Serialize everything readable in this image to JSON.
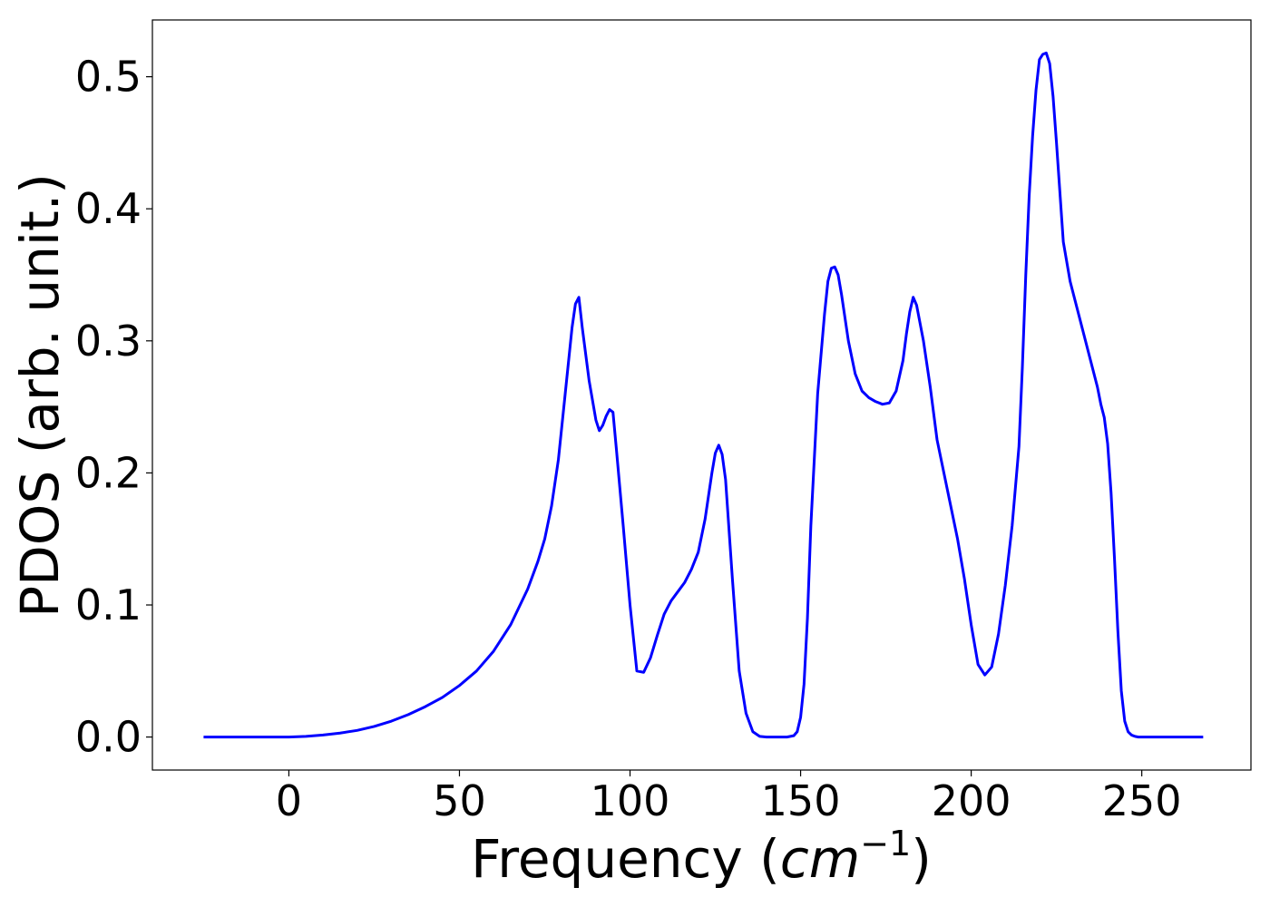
{
  "chart_data": {
    "type": "line",
    "xlabel": "Frequency (",
    "xlabel_math": "cm",
    "xlabel_exponent": "−1",
    "xlabel_close": ")",
    "ylabel": "PDOS (arb. unit.)",
    "xlim": [
      -40,
      282
    ],
    "ylim": [
      -0.025,
      0.543
    ],
    "xticks": [
      0,
      50,
      100,
      150,
      200,
      250
    ],
    "xtick_labels": [
      "0",
      "50",
      "100",
      "150",
      "200",
      "250"
    ],
    "yticks": [
      0.0,
      0.1,
      0.2,
      0.3,
      0.4,
      0.5
    ],
    "ytick_labels": [
      "0.0",
      "0.1",
      "0.2",
      "0.3",
      "0.4",
      "0.5"
    ],
    "grid": false,
    "series": [
      {
        "color": "#0000ff",
        "x": [
          -25,
          -10,
          0,
          5,
          10,
          15,
          20,
          25,
          30,
          35,
          40,
          45,
          50,
          55,
          60,
          65,
          70,
          73,
          75,
          77,
          79,
          81,
          83,
          84,
          85,
          86,
          88,
          90,
          91,
          92,
          93,
          94,
          95,
          96,
          98,
          100,
          102,
          104,
          106,
          108,
          110,
          112,
          114,
          116,
          118,
          120,
          122,
          124,
          125,
          126,
          127,
          128,
          130,
          132,
          134,
          136,
          138,
          140,
          142,
          144,
          146,
          148,
          149,
          150,
          151,
          152,
          153,
          155,
          157,
          158,
          159,
          160,
          161,
          162,
          164,
          166,
          168,
          170,
          172,
          174,
          176,
          178,
          180,
          181,
          182,
          183,
          184,
          186,
          188,
          190,
          192,
          194,
          196,
          198,
          200,
          202,
          204,
          206,
          208,
          210,
          212,
          214,
          215,
          216,
          217,
          218,
          219,
          220,
          221,
          222,
          223,
          224,
          225,
          227,
          229,
          231,
          233,
          235,
          237,
          238,
          239,
          240,
          241,
          242,
          243,
          244,
          245,
          246,
          247,
          248,
          249,
          250,
          255,
          260,
          268
        ],
        "y": [
          0.0,
          0.0,
          0.0,
          0.0005,
          0.0015,
          0.003,
          0.005,
          0.008,
          0.012,
          0.017,
          0.023,
          0.03,
          0.039,
          0.05,
          0.065,
          0.085,
          0.112,
          0.133,
          0.15,
          0.175,
          0.21,
          0.26,
          0.31,
          0.328,
          0.333,
          0.31,
          0.27,
          0.24,
          0.232,
          0.236,
          0.243,
          0.248,
          0.246,
          0.218,
          0.16,
          0.1,
          0.05,
          0.049,
          0.06,
          0.077,
          0.093,
          0.103,
          0.11,
          0.117,
          0.127,
          0.14,
          0.165,
          0.2,
          0.215,
          0.221,
          0.214,
          0.195,
          0.12,
          0.05,
          0.018,
          0.004,
          0.0005,
          0.0,
          0.0,
          0.0,
          0.0,
          0.001,
          0.004,
          0.015,
          0.04,
          0.09,
          0.16,
          0.26,
          0.32,
          0.345,
          0.355,
          0.356,
          0.35,
          0.335,
          0.3,
          0.275,
          0.262,
          0.257,
          0.254,
          0.252,
          0.253,
          0.262,
          0.285,
          0.305,
          0.322,
          0.333,
          0.327,
          0.3,
          0.265,
          0.225,
          0.2,
          0.175,
          0.15,
          0.12,
          0.085,
          0.055,
          0.047,
          0.053,
          0.078,
          0.115,
          0.16,
          0.22,
          0.28,
          0.35,
          0.41,
          0.455,
          0.49,
          0.513,
          0.517,
          0.518,
          0.51,
          0.485,
          0.45,
          0.375,
          0.345,
          0.325,
          0.305,
          0.285,
          0.265,
          0.252,
          0.242,
          0.222,
          0.185,
          0.135,
          0.08,
          0.035,
          0.012,
          0.004,
          0.0015,
          0.0005,
          0.0,
          0.0,
          0.0,
          0.0,
          0.0
        ]
      }
    ]
  }
}
